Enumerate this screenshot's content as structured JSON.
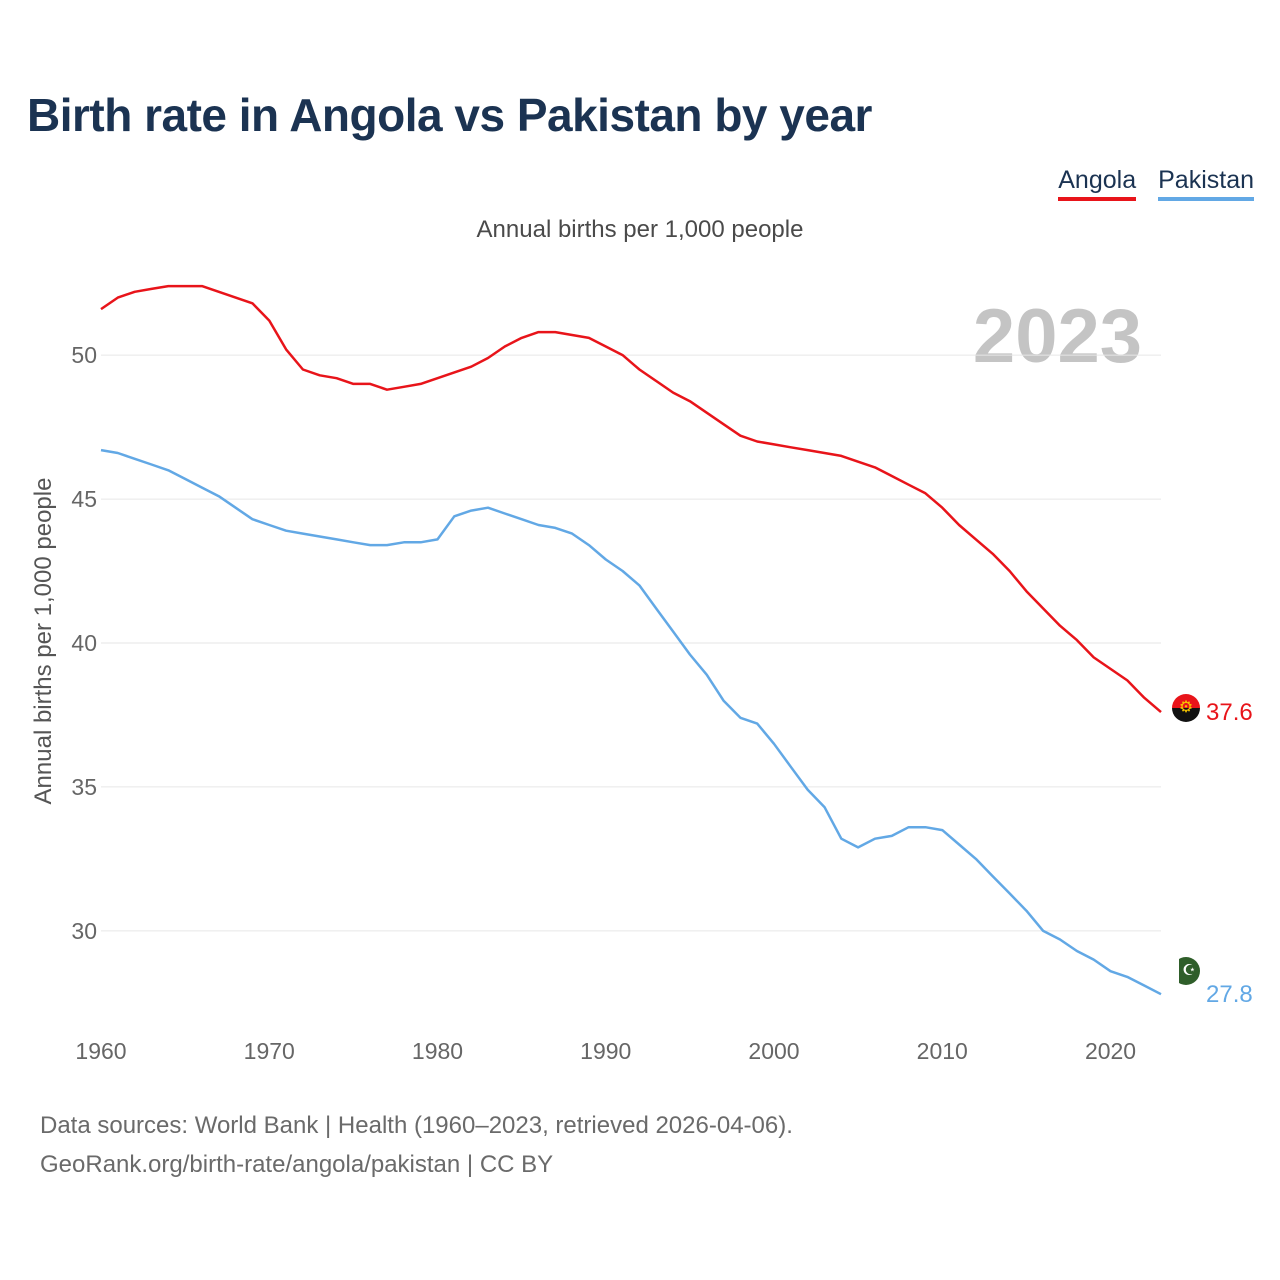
{
  "title": "Birth rate in Angola vs Pakistan by year",
  "subtitle": "Annual births per 1,000 people",
  "legend": [
    {
      "label": "Angola",
      "color": "#e8141a"
    },
    {
      "label": "Pakistan",
      "color": "#62a8e5"
    }
  ],
  "current_year": "2023",
  "footer": {
    "line1": "Data sources: World Bank | Health (1960–2023, retrieved 2026-04-06).",
    "line2": "GeoRank.org/birth-rate/angola/pakistan | CC BY"
  },
  "chart_data": {
    "type": "line",
    "title": "Birth rate in Angola vs Pakistan by year",
    "xlabel": "",
    "ylabel": "Annual births per 1,000 people",
    "xlim": [
      1960,
      2023
    ],
    "ylim": [
      26,
      54
    ],
    "yticks": [
      30,
      35,
      40,
      45,
      50
    ],
    "xticks": [
      1960,
      1970,
      1980,
      1990,
      2000,
      2010,
      2020
    ],
    "grid": true,
    "x": [
      1960,
      1961,
      1962,
      1963,
      1964,
      1965,
      1966,
      1967,
      1968,
      1969,
      1970,
      1971,
      1972,
      1973,
      1974,
      1975,
      1976,
      1977,
      1978,
      1979,
      1980,
      1981,
      1982,
      1983,
      1984,
      1985,
      1986,
      1987,
      1988,
      1989,
      1990,
      1991,
      1992,
      1993,
      1994,
      1995,
      1996,
      1997,
      1998,
      1999,
      2000,
      2001,
      2002,
      2003,
      2004,
      2005,
      2006,
      2007,
      2008,
      2009,
      2010,
      2011,
      2012,
      2013,
      2014,
      2015,
      2016,
      2017,
      2018,
      2019,
      2020,
      2021,
      2022,
      2023
    ],
    "series": [
      {
        "name": "Angola",
        "color": "#e8141a",
        "end_label": "37.6",
        "values": [
          51.6,
          52.0,
          52.2,
          52.3,
          52.4,
          52.4,
          52.4,
          52.2,
          52.0,
          51.8,
          51.2,
          50.2,
          49.5,
          49.3,
          49.2,
          49.0,
          49.0,
          48.8,
          48.9,
          49.0,
          49.2,
          49.4,
          49.6,
          49.9,
          50.3,
          50.6,
          50.8,
          50.8,
          50.7,
          50.6,
          50.3,
          50.0,
          49.5,
          49.1,
          48.7,
          48.4,
          48.0,
          47.6,
          47.2,
          47.0,
          46.9,
          46.8,
          46.7,
          46.6,
          46.5,
          46.3,
          46.1,
          45.8,
          45.5,
          45.2,
          44.7,
          44.1,
          43.6,
          43.1,
          42.5,
          41.8,
          41.2,
          40.6,
          40.1,
          39.5,
          39.1,
          38.7,
          38.1,
          37.6
        ]
      },
      {
        "name": "Pakistan",
        "color": "#62a8e5",
        "end_label": "27.8",
        "values": [
          46.7,
          46.6,
          46.4,
          46.2,
          46.0,
          45.7,
          45.4,
          45.1,
          44.7,
          44.3,
          44.1,
          43.9,
          43.8,
          43.7,
          43.6,
          43.5,
          43.4,
          43.4,
          43.5,
          43.5,
          43.6,
          44.4,
          44.6,
          44.7,
          44.5,
          44.3,
          44.1,
          44.0,
          43.8,
          43.4,
          42.9,
          42.5,
          42.0,
          41.2,
          40.4,
          39.6,
          38.9,
          38.0,
          37.4,
          37.2,
          36.5,
          35.7,
          34.9,
          34.3,
          33.2,
          32.9,
          33.2,
          33.3,
          33.6,
          33.6,
          33.5,
          33.0,
          32.5,
          31.9,
          31.3,
          30.7,
          30.0,
          29.7,
          29.3,
          29.0,
          28.6,
          28.4,
          28.1,
          27.8
        ]
      }
    ]
  }
}
